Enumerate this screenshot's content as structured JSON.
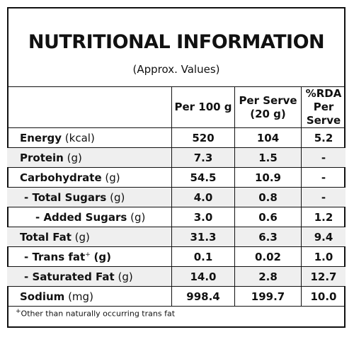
{
  "title": "NUTRITIONAL INFORMATION",
  "subtitle": "(Approx. Values)",
  "table": {
    "header": [
      [
        "Per 100 g"
      ],
      [
        "Per Serve",
        "(20 g)"
      ],
      [
        "%RDA",
        "Per Serve"
      ]
    ],
    "rows": [
      {
        "name": "Energy",
        "unit": "(kcal)",
        "cells": [
          "520",
          "104",
          "5.2"
        ]
      },
      {
        "name": "Protein",
        "unit": "(g)",
        "cells": [
          "7.3",
          "1.5",
          "-"
        ]
      },
      {
        "name": "Carbohydrate",
        "unit": "(g)",
        "cells": [
          "54.5",
          "10.9",
          "-"
        ]
      },
      {
        "name": "- Total Sugars",
        "unit": "(g)",
        "cells": [
          "4.0",
          "0.8",
          "-"
        ]
      },
      {
        "name": "- Added Sugars",
        "unit": "(g)",
        "cells": [
          "3.0",
          "0.6",
          "1.2"
        ]
      },
      {
        "name": "Total Fat",
        "unit": "(g)",
        "cells": [
          "31.3",
          "6.3",
          "9.4"
        ]
      },
      {
        "name": "- Trans fat",
        "marker": "+",
        "unit": "(g)",
        "cells": [
          "0.1",
          "0.02",
          "1.0"
        ]
      },
      {
        "name": "- Saturated Fat",
        "unit": "(g)",
        "cells": [
          "14.0",
          "2.8",
          "12.7"
        ]
      },
      {
        "name": "Sodium",
        "unit": "(mg)",
        "cells": [
          "998.4",
          "199.7",
          "10.0"
        ]
      }
    ]
  },
  "footnote": {
    "marker": "+",
    "text": "Other than naturally occurring trans fat"
  }
}
